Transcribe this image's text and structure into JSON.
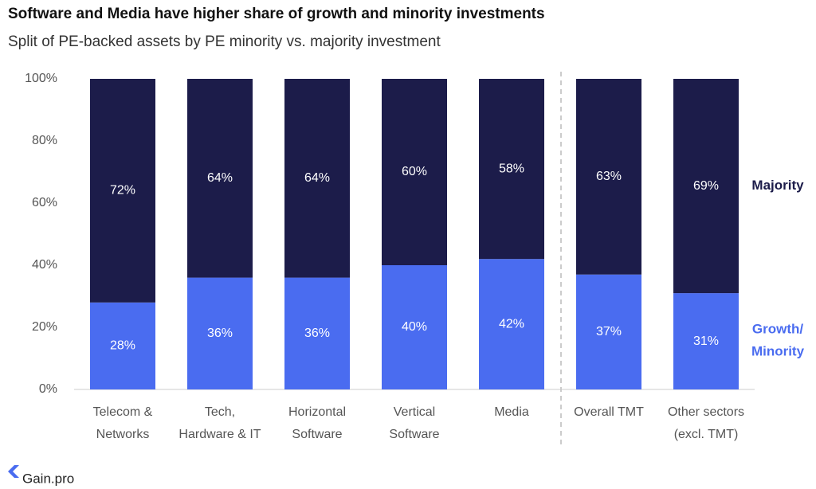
{
  "chart_data": {
    "type": "stacked-bar",
    "title": "Software and Media have higher share of growth and minority investments",
    "subtitle": "Split of PE-backed assets by PE minority vs. majority investment",
    "categories": [
      "Telecom &\nNetworks",
      "Tech,\nHardware & IT",
      "Horizontal\nSoftware",
      "Vertical\nSoftware",
      "Media",
      "Overall TMT",
      "Other sectors\n(excl. TMT)"
    ],
    "series": [
      {
        "name": "Growth/\nMinority",
        "color": "#4a6cf0",
        "values": [
          28,
          36,
          36,
          40,
          42,
          37,
          31
        ],
        "value_labels": [
          "28%",
          "36%",
          "36%",
          "40%",
          "42%",
          "37%",
          "31%"
        ]
      },
      {
        "name": "Majority",
        "color": "#1c1c4a",
        "values": [
          72,
          64,
          64,
          60,
          58,
          63,
          69
        ],
        "value_labels": [
          "72%",
          "64%",
          "64%",
          "60%",
          "58%",
          "63%",
          "69%"
        ]
      }
    ],
    "ylim": [
      0,
      100
    ],
    "yticks": [
      {
        "value": 0,
        "label": "0%"
      },
      {
        "value": 20,
        "label": "20%"
      },
      {
        "value": 40,
        "label": "40%"
      },
      {
        "value": 60,
        "label": "60%"
      },
      {
        "value": 80,
        "label": "80%"
      },
      {
        "value": 100,
        "label": "100%"
      }
    ],
    "source": "Gain.pro"
  }
}
